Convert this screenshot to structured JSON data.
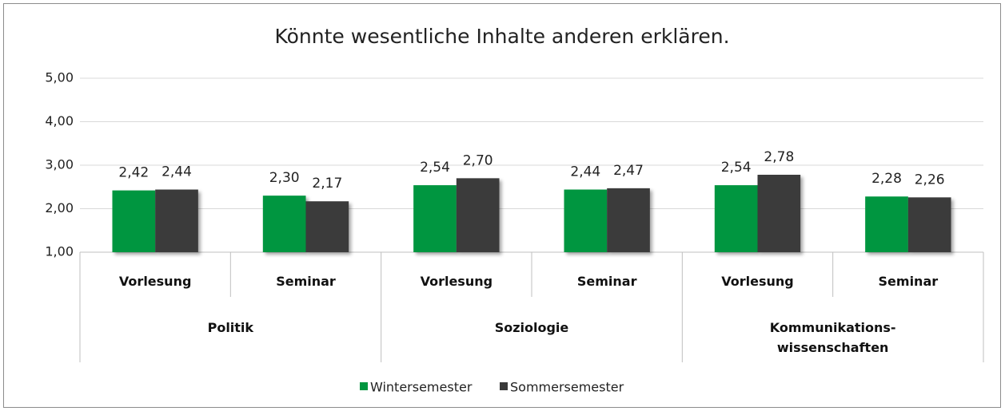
{
  "chart_data": {
    "type": "bar",
    "title": "Könnte wesentliche Inhalte anderen erklären.",
    "categories": [
      "Vorlesung",
      "Seminar",
      "Vorlesung",
      "Seminar",
      "Vorlesung",
      "Seminar"
    ],
    "groups": [
      "Politik",
      "Soziologie",
      "Kommunikations-\nwissenschaften"
    ],
    "series": [
      {
        "name": "Wintersemester",
        "color": "#00963f",
        "values": [
          2.42,
          2.3,
          2.54,
          2.44,
          2.54,
          2.28
        ],
        "value_labels": [
          "2,42",
          "2,30",
          "2,54",
          "2,44",
          "2,54",
          "2,28"
        ]
      },
      {
        "name": "Sommersemester",
        "color": "#3a3a3a",
        "values": [
          2.44,
          2.17,
          2.7,
          2.47,
          2.78,
          2.26
        ],
        "value_labels": [
          "2,44",
          "2,17",
          "2,70",
          "2,47",
          "2,78",
          "2,26"
        ]
      }
    ],
    "ylim": [
      1,
      5
    ],
    "yticks": [
      {
        "value": 1,
        "label": "1,00"
      },
      {
        "value": 2,
        "label": "2,00"
      },
      {
        "value": 3,
        "label": "3,00"
      },
      {
        "value": 4,
        "label": "4,00"
      },
      {
        "value": 5,
        "label": "5,00"
      }
    ],
    "grid": true,
    "legend": "bottom"
  }
}
